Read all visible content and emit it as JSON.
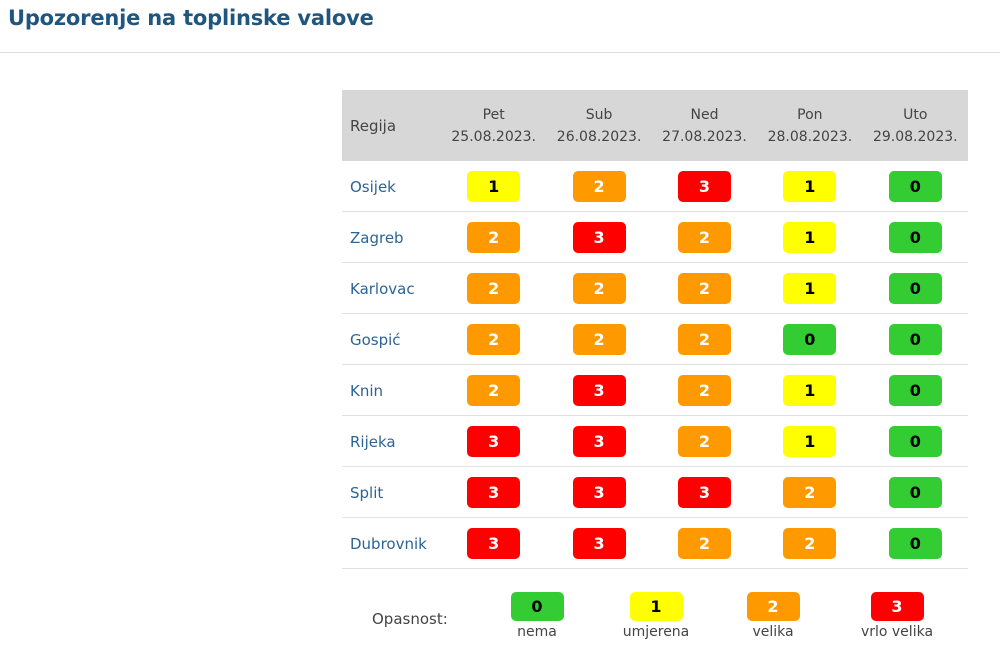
{
  "page": {
    "title": "Upozorenje na toplinske valove"
  },
  "table": {
    "region_header": "Regija",
    "days": [
      {
        "day": "Pet",
        "date": "25.08.2023."
      },
      {
        "day": "Sub",
        "date": "26.08.2023."
      },
      {
        "day": "Ned",
        "date": "27.08.2023."
      },
      {
        "day": "Pon",
        "date": "28.08.2023."
      },
      {
        "day": "Uto",
        "date": "29.08.2023."
      }
    ],
    "rows": [
      {
        "region": "Osijek",
        "levels": [
          "1",
          "2",
          "3",
          "1",
          "0"
        ]
      },
      {
        "region": "Zagreb",
        "levels": [
          "2",
          "3",
          "2",
          "1",
          "0"
        ]
      },
      {
        "region": "Karlovac",
        "levels": [
          "2",
          "2",
          "2",
          "1",
          "0"
        ]
      },
      {
        "region": "Gospić",
        "levels": [
          "2",
          "2",
          "2",
          "0",
          "0"
        ]
      },
      {
        "region": "Knin",
        "levels": [
          "2",
          "3",
          "2",
          "1",
          "0"
        ]
      },
      {
        "region": "Rijeka",
        "levels": [
          "3",
          "3",
          "2",
          "1",
          "0"
        ]
      },
      {
        "region": "Split",
        "levels": [
          "3",
          "3",
          "3",
          "2",
          "0"
        ]
      },
      {
        "region": "Dubrovnik",
        "levels": [
          "3",
          "3",
          "2",
          "2",
          "0"
        ]
      }
    ]
  },
  "legend": {
    "label": "Opasnost:",
    "items": [
      {
        "level": "0",
        "text": "nema"
      },
      {
        "level": "1",
        "text": "umjerena"
      },
      {
        "level": "2",
        "text": "velika"
      },
      {
        "level": "3",
        "text": "vrlo velika"
      }
    ]
  },
  "colors": {
    "level_0": "#33cc33",
    "level_1": "#ffff00",
    "level_2": "#ff9900",
    "level_3": "#ff0000",
    "title": "#1f567f",
    "link": "#2d6494",
    "header_bg": "#d7d7d7"
  }
}
